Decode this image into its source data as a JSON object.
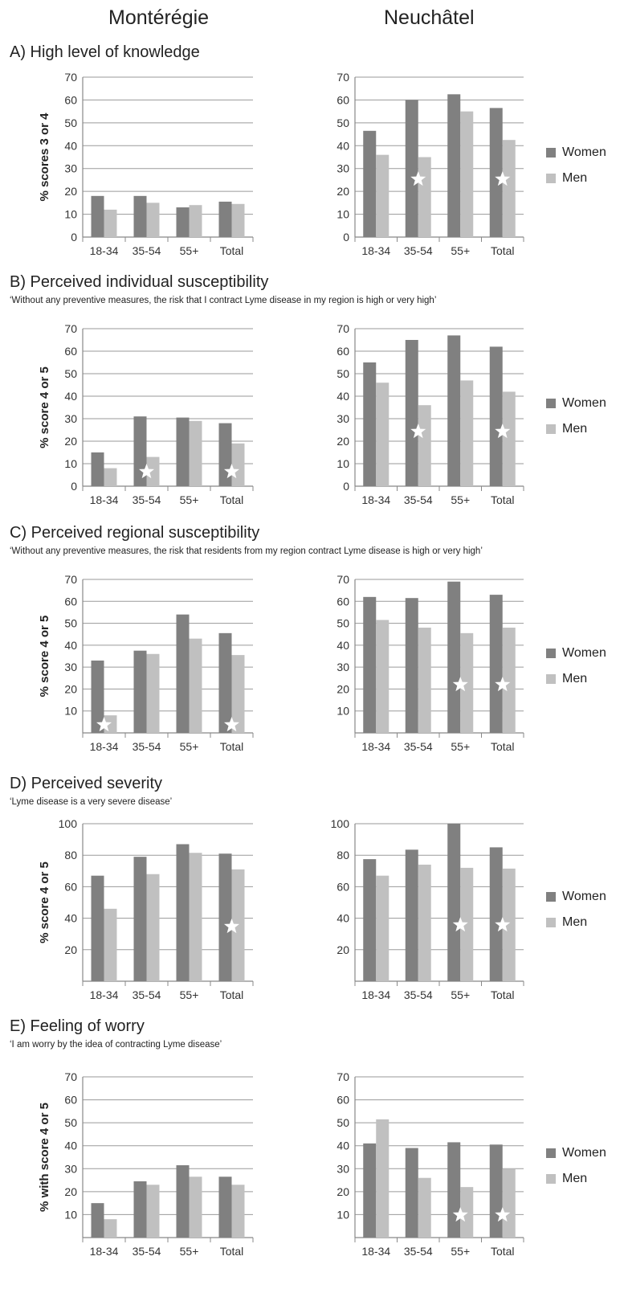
{
  "columns": [
    "Montérégie",
    "Neuchâtel"
  ],
  "legend": [
    "Women",
    "Men"
  ],
  "colors": {
    "women": "#808080",
    "men": "#c0c0c0",
    "axis": "#888888",
    "grid": "#9a9a9a",
    "star": "#ffffff"
  },
  "sections": [
    {
      "title": "A) High level of knowledge",
      "subtitle": ""
    },
    {
      "title": "B) Perceived individual susceptibility",
      "subtitle": "‘Without any preventive measures, the risk that I contract Lyme disease in my region is  high or very high’"
    },
    {
      "title": "C) Perceived  regional susceptibility",
      "subtitle": "‘Without any preventive measures, the risk that residents from my region contract Lyme disease is high or very high’"
    },
    {
      "title": "D) Perceived  severity",
      "subtitle": "‘Lyme disease is a very severe disease’"
    },
    {
      "title": "E) Feeling of worry",
      "subtitle": "‘I am worry by the idea of contracting Lyme disease’"
    }
  ],
  "chart_data": [
    {
      "id": "A-monteregie",
      "type": "bar",
      "region": "Montérégie",
      "ylabel": "%  scores 3 or 4",
      "categories": [
        "18-34",
        "35-54",
        "55+",
        "Total"
      ],
      "ylim": [
        0,
        70
      ],
      "yticks": [
        0,
        10,
        20,
        30,
        40,
        50,
        60,
        70
      ],
      "grid": true,
      "series": [
        {
          "name": "Women",
          "values": [
            18,
            18,
            13,
            15.5
          ]
        },
        {
          "name": "Men",
          "values": [
            12,
            15,
            14,
            14.5
          ]
        }
      ],
      "stars": []
    },
    {
      "id": "A-neuchatel",
      "type": "bar",
      "region": "Neuchâtel",
      "ylabel": "",
      "categories": [
        "18-34",
        "35-54",
        "55+",
        "Total"
      ],
      "ylim": [
        0,
        70
      ],
      "yticks": [
        0,
        10,
        20,
        30,
        40,
        50,
        60,
        70
      ],
      "grid": true,
      "series": [
        {
          "name": "Women",
          "values": [
            46.5,
            60,
            62.5,
            56.5
          ]
        },
        {
          "name": "Men",
          "values": [
            36,
            35,
            55,
            42.5
          ]
        }
      ],
      "stars": [
        "35-54",
        "Total"
      ]
    },
    {
      "id": "B-monteregie",
      "type": "bar",
      "region": "Montérégie",
      "ylabel": "% score 4 or 5",
      "categories": [
        "18-34",
        "35-54",
        "55+",
        "Total"
      ],
      "ylim": [
        0,
        70
      ],
      "yticks": [
        0,
        10,
        20,
        30,
        40,
        50,
        60,
        70
      ],
      "grid": true,
      "series": [
        {
          "name": "Women",
          "values": [
            15,
            31,
            30.5,
            28
          ]
        },
        {
          "name": "Men",
          "values": [
            8,
            13,
            29,
            19
          ]
        }
      ],
      "stars": [
        "35-54",
        "Total"
      ]
    },
    {
      "id": "B-neuchatel",
      "type": "bar",
      "region": "Neuchâtel",
      "ylabel": "",
      "categories": [
        "18-34",
        "35-54",
        "55+",
        "Total"
      ],
      "ylim": [
        0,
        70
      ],
      "yticks": [
        0,
        10,
        20,
        30,
        40,
        50,
        60,
        70
      ],
      "grid": true,
      "series": [
        {
          "name": "Women",
          "values": [
            55,
            65,
            67,
            62
          ]
        },
        {
          "name": "Men",
          "values": [
            46,
            36,
            47,
            42
          ]
        }
      ],
      "stars": [
        "35-54",
        "Total"
      ]
    },
    {
      "id": "C-monteregie",
      "type": "bar",
      "region": "Montérégie",
      "ylabel": "%  score 4 or 5",
      "categories": [
        "18-34",
        "35-54",
        "55+",
        "Total"
      ],
      "ylim": [
        0,
        70
      ],
      "yticks": [
        10,
        20,
        30,
        40,
        50,
        60,
        70
      ],
      "grid": true,
      "series": [
        {
          "name": "Women",
          "values": [
            33,
            37.5,
            54,
            45.5
          ]
        },
        {
          "name": "Men",
          "values": [
            8,
            36,
            43,
            35.5
          ]
        }
      ],
      "stars": [
        "18-34",
        "Total"
      ]
    },
    {
      "id": "C-neuchatel",
      "type": "bar",
      "region": "Neuchâtel",
      "ylabel": "",
      "categories": [
        "18-34",
        "35-54",
        "55+",
        "Total"
      ],
      "ylim": [
        0,
        70
      ],
      "yticks": [
        10,
        20,
        30,
        40,
        50,
        60,
        70
      ],
      "grid": true,
      "series": [
        {
          "name": "Women",
          "values": [
            62,
            61.5,
            69,
            63
          ]
        },
        {
          "name": "Men",
          "values": [
            51.5,
            48,
            45.5,
            48
          ]
        }
      ],
      "stars": [
        "55+",
        "Total"
      ]
    },
    {
      "id": "D-monteregie",
      "type": "bar",
      "region": "Montérégie",
      "ylabel": "% score 4 or 5",
      "categories": [
        "18-34",
        "35-54",
        "55+",
        "Total"
      ],
      "ylim": [
        0,
        100
      ],
      "yticks": [
        20,
        40,
        60,
        80,
        100
      ],
      "grid": true,
      "series": [
        {
          "name": "Women",
          "values": [
            67,
            79,
            87,
            81
          ]
        },
        {
          "name": "Men",
          "values": [
            46,
            68,
            81.5,
            71
          ]
        }
      ],
      "stars": [
        "Total"
      ]
    },
    {
      "id": "D-neuchatel",
      "type": "bar",
      "region": "Neuchâtel",
      "ylabel": "",
      "categories": [
        "18-34",
        "35-54",
        "55+",
        "Total"
      ],
      "ylim": [
        0,
        100
      ],
      "yticks": [
        20,
        40,
        60,
        80,
        100
      ],
      "grid": true,
      "series": [
        {
          "name": "Women",
          "values": [
            77.5,
            83.5,
            100,
            85
          ]
        },
        {
          "name": "Men",
          "values": [
            67,
            74,
            72,
            71.5
          ]
        }
      ],
      "stars": [
        "55+",
        "Total"
      ]
    },
    {
      "id": "E-monteregie",
      "type": "bar",
      "region": "Montérégie",
      "ylabel": "% with score 4 or 5",
      "categories": [
        "18-34",
        "35-54",
        "55+",
        "Total"
      ],
      "ylim": [
        0,
        70
      ],
      "yticks": [
        10,
        20,
        30,
        40,
        50,
        60,
        70
      ],
      "grid": true,
      "series": [
        {
          "name": "Women",
          "values": [
            15,
            24.5,
            31.5,
            26.5
          ]
        },
        {
          "name": "Men",
          "values": [
            8,
            23,
            26.5,
            23
          ]
        }
      ],
      "stars": []
    },
    {
      "id": "E-neuchatel",
      "type": "bar",
      "region": "Neuchâtel",
      "ylabel": "",
      "categories": [
        "18-34",
        "35-54",
        "55+",
        "Total"
      ],
      "ylim": [
        0,
        70
      ],
      "yticks": [
        10,
        20,
        30,
        40,
        50,
        60,
        70
      ],
      "grid": true,
      "series": [
        {
          "name": "Women",
          "values": [
            41,
            39,
            41.5,
            40.5
          ]
        },
        {
          "name": "Men",
          "values": [
            51.5,
            26,
            22,
            30
          ]
        }
      ],
      "stars": [
        "55+",
        "Total"
      ]
    }
  ]
}
